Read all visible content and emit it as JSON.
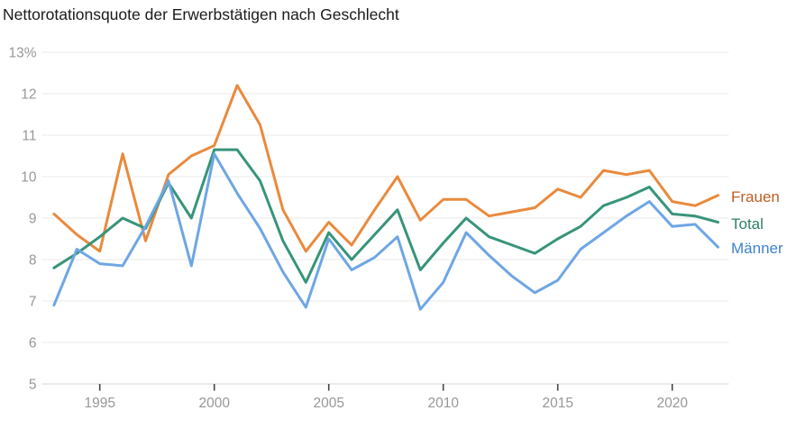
{
  "title": "Nettorotationsquote der Erwerbstätigen nach Geschlecht",
  "chart_data": {
    "type": "line",
    "title": "Nettorotationsquote der Erwerbstätigen nach Geschlecht",
    "xlabel": "",
    "ylabel": "",
    "xlim": [
      1993,
      2022
    ],
    "ylim": [
      5,
      13
    ],
    "grid": "horizontal",
    "legend_position": "right-of-line-ends",
    "x": [
      1993,
      1994,
      1995,
      1996,
      1997,
      1998,
      1999,
      2000,
      2001,
      2002,
      2003,
      2004,
      2005,
      2006,
      2007,
      2008,
      2009,
      2010,
      2011,
      2012,
      2013,
      2014,
      2015,
      2016,
      2017,
      2018,
      2019,
      2020,
      2021,
      2022
    ],
    "x_ticks": [
      1995,
      2000,
      2005,
      2010,
      2015,
      2020
    ],
    "x_tick_labels": [
      "1995",
      "2000",
      "2005",
      "2010",
      "2015",
      "2020"
    ],
    "y_ticks": [
      {
        "value": 13,
        "label": "13%"
      },
      {
        "value": 12,
        "label": "12"
      },
      {
        "value": 11,
        "label": "11"
      },
      {
        "value": 10,
        "label": "10"
      },
      {
        "value": 9,
        "label": "9"
      },
      {
        "value": 8,
        "label": "8"
      },
      {
        "value": 7,
        "label": "7"
      },
      {
        "value": 6,
        "label": "6"
      },
      {
        "value": 5,
        "label": "5"
      }
    ],
    "series": [
      {
        "name": "Frauen",
        "line_color": "#e98a3d",
        "label_color": "#c05d25",
        "values": [
          9.1,
          8.6,
          8.2,
          10.55,
          8.45,
          10.05,
          10.5,
          10.75,
          12.2,
          11.25,
          9.2,
          8.2,
          8.9,
          8.35,
          9.2,
          10.0,
          8.95,
          9.45,
          9.45,
          9.05,
          9.15,
          9.25,
          9.7,
          9.5,
          10.15,
          10.05,
          10.15,
          9.4,
          9.3,
          9.55
        ]
      },
      {
        "name": "Total",
        "line_color": "#37947a",
        "label_color": "#2d7f68",
        "values": [
          7.8,
          8.15,
          8.55,
          9.0,
          8.75,
          9.85,
          9.0,
          10.65,
          10.65,
          9.9,
          8.45,
          7.45,
          8.65,
          8.0,
          8.6,
          9.2,
          7.75,
          8.4,
          9.0,
          8.55,
          8.35,
          8.15,
          8.5,
          8.8,
          9.3,
          9.5,
          9.75,
          9.1,
          9.05,
          8.9
        ]
      },
      {
        "name": "Männer",
        "line_color": "#6ea6e4",
        "label_color": "#3e82cb",
        "values": [
          6.9,
          8.25,
          7.9,
          7.85,
          8.8,
          9.9,
          7.85,
          10.55,
          9.6,
          8.75,
          7.7,
          6.85,
          8.5,
          7.75,
          8.05,
          8.55,
          6.8,
          7.45,
          8.65,
          8.1,
          7.6,
          7.2,
          7.5,
          8.25,
          8.65,
          9.05,
          9.4,
          8.8,
          8.85,
          8.3
        ]
      }
    ]
  }
}
